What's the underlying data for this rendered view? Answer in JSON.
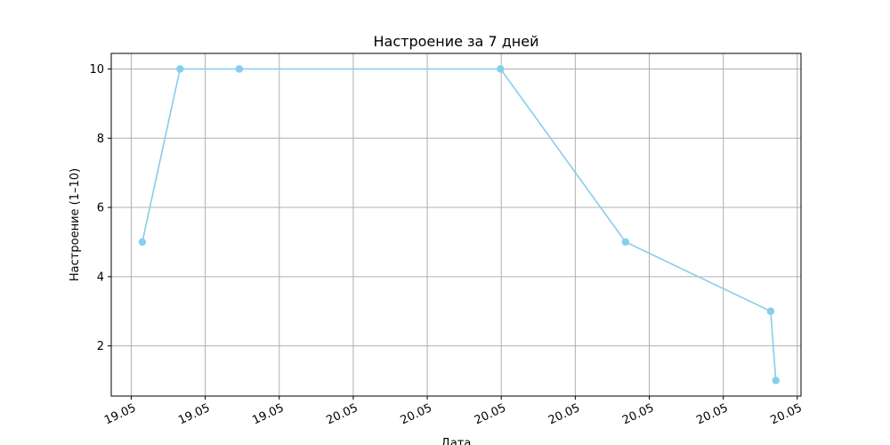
{
  "chart_data": {
    "type": "line",
    "title": "Настроение за 7 дней",
    "xlabel": "Дата",
    "ylabel": "Настроение (1–10)",
    "x_ticks": [
      {
        "t": 0,
        "label": "19.05"
      },
      {
        "t": 1,
        "label": "19.05"
      },
      {
        "t": 2,
        "label": "19.05"
      },
      {
        "t": 3,
        "label": "20.05"
      },
      {
        "t": 4,
        "label": "20.05"
      },
      {
        "t": 5,
        "label": "20.05"
      },
      {
        "t": 6,
        "label": "20.05"
      },
      {
        "t": 7,
        "label": "20.05"
      },
      {
        "t": 8,
        "label": "20.05"
      },
      {
        "t": 9,
        "label": "20.05"
      }
    ],
    "x_tick_rotation_deg": -25,
    "xlim": [
      -0.27,
      9.05
    ],
    "y_ticks": [
      2,
      4,
      6,
      8,
      10
    ],
    "ylim": [
      0.55,
      10.45
    ],
    "grid": true,
    "series": [
      {
        "color": "#87ceeb",
        "marker": "circle",
        "points": [
          {
            "x": 0.15,
            "y": 5
          },
          {
            "x": 0.66,
            "y": 10
          },
          {
            "x": 1.46,
            "y": 10
          },
          {
            "x": 4.99,
            "y": 10
          },
          {
            "x": 6.68,
            "y": 5
          },
          {
            "x": 8.64,
            "y": 3
          },
          {
            "x": 8.71,
            "y": 1
          }
        ]
      }
    ]
  }
}
